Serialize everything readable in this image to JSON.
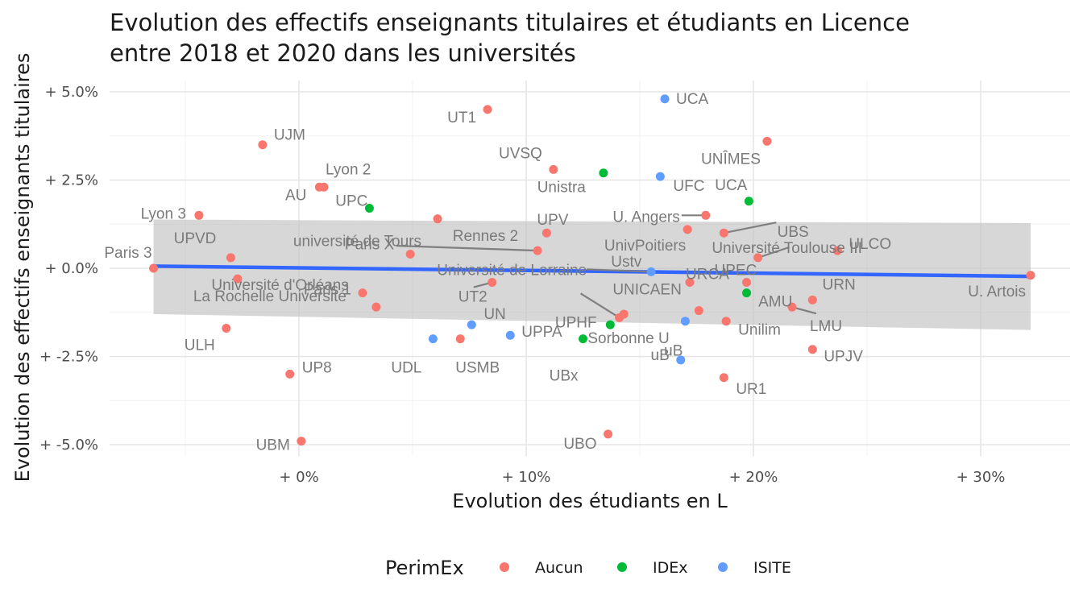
{
  "colors": {
    "Aucun": "#F8766D",
    "IDEx": "#00BA38",
    "ISITE": "#619CFF",
    "fit": "#3366FF",
    "ribbon": "#BEBEBE"
  },
  "chart_data": {
    "type": "scatter",
    "title": "Evolution des effectifs enseignants titulaires et étudiants en Licence\nentre 2018 et 2020 dans les universités",
    "xlabel": "Evolution des étudiants en L",
    "ylabel": "Evolution des effectifs enseignants titulaires",
    "xlim": [
      -0.08,
      0.34
    ],
    "ylim": [
      -0.055,
      0.0555
    ],
    "grid": true,
    "legend": {
      "title": "PerimEx",
      "position": "bottom",
      "entries": [
        "Aucun",
        "IDEx",
        "ISITE"
      ]
    },
    "x_ticks": [
      {
        "value": 0.0,
        "label": "+ 0%"
      },
      {
        "value": 0.1,
        "label": "+ 10%"
      },
      {
        "value": 0.2,
        "label": "+ 20%"
      },
      {
        "value": 0.3,
        "label": "+ 30%"
      }
    ],
    "y_ticks": [
      {
        "value": 0.05,
        "label": "+ 5.0%"
      },
      {
        "value": 0.025,
        "label": "+ 2.5%"
      },
      {
        "value": 0.0,
        "label": "+ 0.0%"
      },
      {
        "value": -0.025,
        "label": "+ -2.5%"
      },
      {
        "value": -0.05,
        "label": "+ -5.0%"
      }
    ],
    "trend": {
      "x": [
        -0.064,
        0.322
      ],
      "y": [
        0.0006,
        -0.0023
      ],
      "ci_low": [
        -0.013,
        -0.0175
      ],
      "ci_high": [
        0.0138,
        0.0128
      ]
    },
    "points": [
      {
        "x": 0.083,
        "y": 0.045,
        "group": "Aucun",
        "label": "UT1"
      },
      {
        "x": 0.161,
        "y": 0.048,
        "group": "ISITE",
        "label": "UCA"
      },
      {
        "x": -0.016,
        "y": 0.035,
        "group": "Aucun",
        "label": "UJM"
      },
      {
        "x": 0.206,
        "y": 0.036,
        "group": "Aucun",
        "label": "UNÎMES"
      },
      {
        "x": 0.112,
        "y": 0.028,
        "group": "Aucun",
        "label": "UVSQ"
      },
      {
        "x": 0.134,
        "y": 0.027,
        "group": "IDEx",
        "label": "Unistra"
      },
      {
        "x": 0.159,
        "y": 0.026,
        "group": "ISITE",
        "label": "UFC"
      },
      {
        "x": 0.011,
        "y": 0.023,
        "group": "Aucun",
        "label": "Lyon 2"
      },
      {
        "x": 0.009,
        "y": 0.023,
        "group": "Aucun",
        "label": "AU"
      },
      {
        "x": 0.031,
        "y": 0.017,
        "group": "IDEx",
        "label": "UPC"
      },
      {
        "x": 0.198,
        "y": 0.019,
        "group": "IDEx",
        "label": "UCA"
      },
      {
        "x": -0.044,
        "y": 0.015,
        "group": "Aucun",
        "label": "Lyon 3"
      },
      {
        "x": 0.179,
        "y": 0.015,
        "group": "Aucun",
        "label": "U. Angers"
      },
      {
        "x": 0.061,
        "y": 0.014,
        "group": "Aucun",
        "label": "université de Tours"
      },
      {
        "x": 0.109,
        "y": 0.01,
        "group": "Aucun",
        "label": "UPV"
      },
      {
        "x": 0.171,
        "y": 0.011,
        "group": "Aucun",
        "label": "UnivPoitiers"
      },
      {
        "x": 0.187,
        "y": 0.01,
        "group": "Aucun",
        "label": "Université Toulouse III"
      },
      {
        "x": 0.105,
        "y": 0.005,
        "group": "Aucun",
        "label": "Rennes 2"
      },
      {
        "x": 0.049,
        "y": 0.004,
        "group": "Aucun",
        "label": "Paris X"
      },
      {
        "x": -0.03,
        "y": 0.003,
        "group": "Aucun",
        "label": "UPVD"
      },
      {
        "x": 0.237,
        "y": 0.005,
        "group": "Aucun",
        "label": "ULCO"
      },
      {
        "x": 0.202,
        "y": 0.003,
        "group": "Aucun",
        "label": "UBS"
      },
      {
        "x": -0.064,
        "y": 0.0,
        "group": "Aucun",
        "label": "Paris 3"
      },
      {
        "x": 0.155,
        "y": -0.001,
        "group": "ISITE",
        "label": "Université de Lorraine"
      },
      {
        "x": 0.172,
        "y": -0.004,
        "group": "Aucun",
        "label": "URCA"
      },
      {
        "x": 0.197,
        "y": -0.004,
        "group": "Aucun",
        "label": "UPEC"
      },
      {
        "x": 0.322,
        "y": -0.002,
        "group": "Aucun",
        "label": "U. Artois"
      },
      {
        "x": -0.027,
        "y": -0.003,
        "group": "Aucun",
        "label": "La Rochelle Université"
      },
      {
        "x": 0.085,
        "y": -0.004,
        "group": "Aucun",
        "label": "UT2"
      },
      {
        "x": 0.197,
        "y": -0.007,
        "group": "IDEx",
        "label": "URN"
      },
      {
        "x": 0.028,
        "y": -0.007,
        "group": "Aucun",
        "label": "Paris 1"
      },
      {
        "x": 0.034,
        "y": -0.011,
        "group": "Aucun",
        "label": "Université d'Orléans"
      },
      {
        "x": 0.226,
        "y": -0.009,
        "group": "Aucun",
        "label": "AMU"
      },
      {
        "x": 0.217,
        "y": -0.011,
        "group": "Aucun",
        "label": "LMU"
      },
      {
        "x": 0.143,
        "y": -0.013,
        "group": "Aucun",
        "label": "Ustv"
      },
      {
        "x": 0.141,
        "y": -0.014,
        "group": "Aucun",
        "label": "UPHF"
      },
      {
        "x": 0.176,
        "y": -0.012,
        "group": "Aucun",
        "label": "UNICAEN"
      },
      {
        "x": 0.137,
        "y": -0.016,
        "group": "IDEx",
        "label": "Sorbonne U"
      },
      {
        "x": 0.188,
        "y": -0.015,
        "group": "Aucun",
        "label": "Unilim"
      },
      {
        "x": 0.076,
        "y": -0.016,
        "group": "ISITE",
        "label": "UN"
      },
      {
        "x": 0.17,
        "y": -0.015,
        "group": "ISITE",
        "label": "uB"
      },
      {
        "x": -0.032,
        "y": -0.017,
        "group": "Aucun",
        "label": "ULH"
      },
      {
        "x": 0.093,
        "y": -0.019,
        "group": "ISITE",
        "label": "UPPA"
      },
      {
        "x": 0.059,
        "y": -0.02,
        "group": "ISITE",
        "label": "UDL"
      },
      {
        "x": 0.071,
        "y": -0.02,
        "group": "Aucun",
        "label": "USMB"
      },
      {
        "x": 0.125,
        "y": -0.02,
        "group": "IDEx",
        "label": "UBx"
      },
      {
        "x": 0.226,
        "y": -0.023,
        "group": "Aucun",
        "label": "UPJV"
      },
      {
        "x": 0.168,
        "y": -0.026,
        "group": "ISITE",
        "label": "uB"
      },
      {
        "x": -0.004,
        "y": -0.03,
        "group": "Aucun",
        "label": "UP8"
      },
      {
        "x": 0.187,
        "y": -0.031,
        "group": "Aucun",
        "label": "UR1"
      },
      {
        "x": 0.001,
        "y": -0.049,
        "group": "Aucun",
        "label": "UBM"
      },
      {
        "x": 0.136,
        "y": -0.047,
        "group": "Aucun",
        "label": "UBO"
      }
    ]
  }
}
